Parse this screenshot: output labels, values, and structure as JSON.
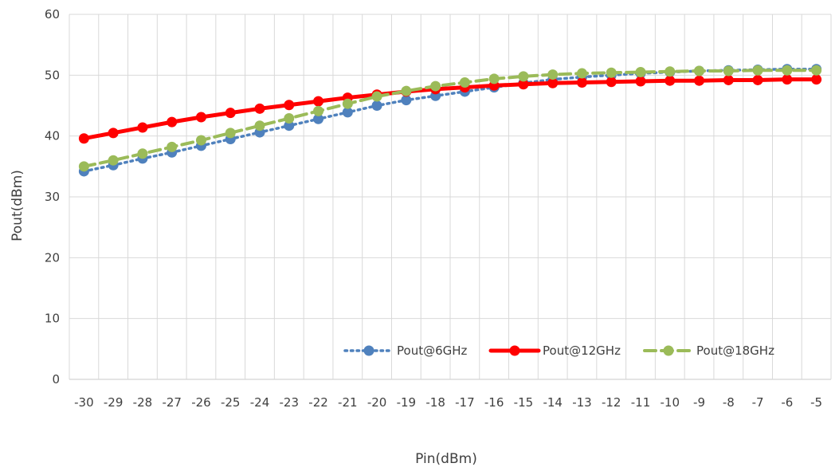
{
  "chart_data": {
    "type": "line",
    "xlabel": "Pin(dBm)",
    "ylabel": "Pout(dBm)",
    "ylim": [
      0,
      60
    ],
    "yticks": [
      0,
      10,
      20,
      30,
      40,
      50,
      60
    ],
    "categories": [
      -30,
      -29,
      -28,
      -27,
      -26,
      -25,
      -24,
      -23,
      -22,
      -21,
      -20,
      -19,
      -18,
      -17,
      -16,
      -15,
      -14,
      -13,
      -12,
      -11,
      -10,
      -9,
      -8,
      -7,
      -6,
      -5
    ],
    "grid": "vertical and horizontal, light gray",
    "legend_position": "bottom-right inside plot",
    "series": [
      {
        "name": "Pout@6GHz",
        "color": "#4F81BD",
        "line_style": "dotted",
        "values": [
          34.2,
          35.2,
          36.3,
          37.3,
          38.4,
          39.5,
          40.6,
          41.7,
          42.8,
          43.9,
          45.0,
          45.9,
          46.6,
          47.3,
          48.0,
          48.7,
          49.3,
          49.7,
          50.0,
          50.3,
          50.5,
          50.7,
          50.8,
          50.9,
          51.0,
          51.0
        ]
      },
      {
        "name": "Pout@12GHz",
        "color": "#FF0000",
        "line_style": "solid",
        "values": [
          39.6,
          40.5,
          41.4,
          42.3,
          43.1,
          43.8,
          44.5,
          45.1,
          45.7,
          46.3,
          46.8,
          47.3,
          47.7,
          48.0,
          48.3,
          48.5,
          48.7,
          48.8,
          48.9,
          49.0,
          49.1,
          49.1,
          49.2,
          49.2,
          49.3,
          49.3
        ]
      },
      {
        "name": "Pout@18GHz",
        "color": "#9BBB59",
        "line_style": "dashed",
        "values": [
          35.0,
          36.0,
          37.1,
          38.2,
          39.3,
          40.5,
          41.7,
          42.9,
          44.1,
          45.3,
          46.5,
          47.4,
          48.2,
          48.8,
          49.4,
          49.8,
          50.1,
          50.3,
          50.4,
          50.5,
          50.6,
          50.7,
          50.7,
          50.8,
          50.8,
          50.8
        ]
      }
    ]
  }
}
